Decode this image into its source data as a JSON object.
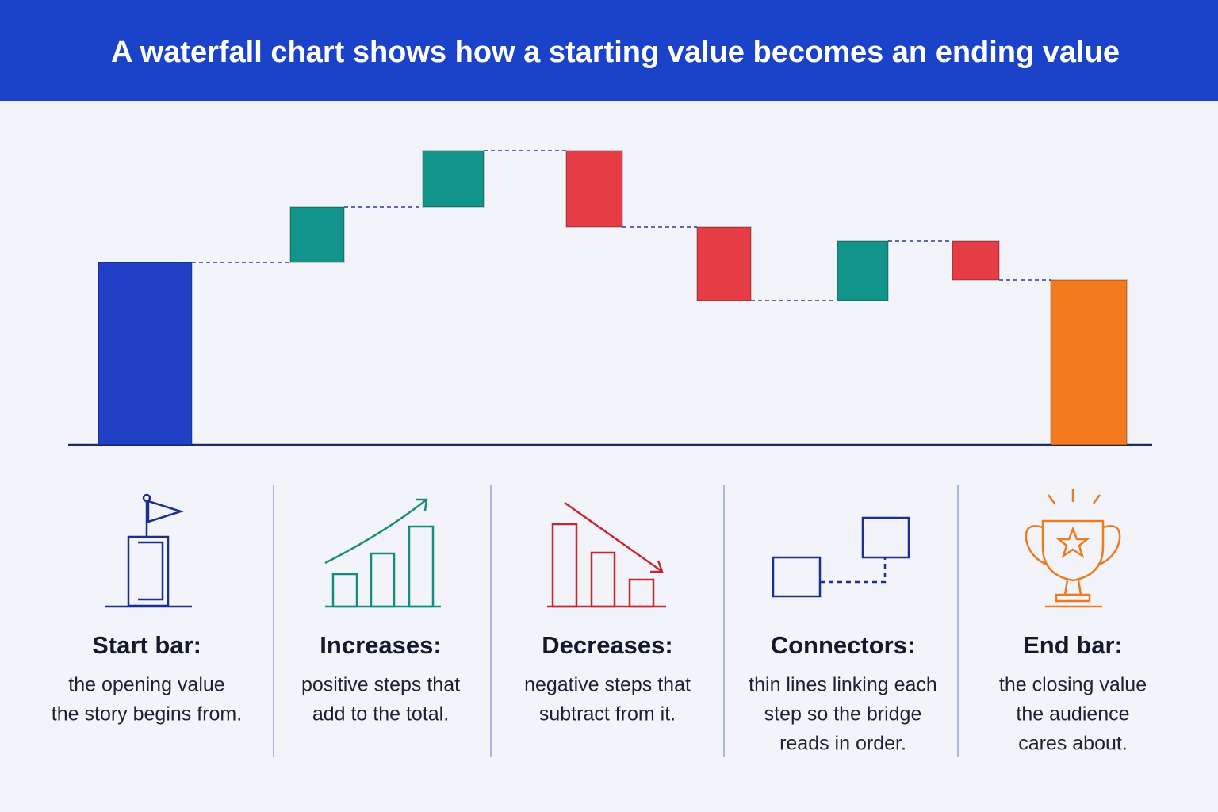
{
  "chart_data": {
    "type": "waterfall",
    "title": "A waterfall chart shows how a starting value becomes an ending value",
    "values": [
      230,
      70,
      71,
      -96,
      -93,
      75,
      -49,
      208
    ],
    "colors": [
      "#1f3fc4",
      "#11958a",
      "#11958a",
      "#e63c46",
      "#e63c46",
      "#11958a",
      "#e63c46",
      "#f47a20"
    ],
    "ylim": [
      0,
      400
    ],
    "annotations": [
      {
        "title": "Start bar:",
        "lines": [
          "the opening value",
          "the story begins from."
        ]
      },
      {
        "title": "Increases:",
        "lines": [
          "positive steps that",
          "add to the total."
        ]
      },
      {
        "title": "Decreases:",
        "lines": [
          "negative steps that",
          "subtract from it."
        ]
      },
      {
        "title": "Connectors:",
        "lines": [
          "thin lines linking each",
          "step so the bridge",
          "reads in order."
        ]
      },
      {
        "title": "End bar:",
        "lines": [
          "the closing value",
          "the audience",
          "cares about."
        ]
      }
    ]
  }
}
